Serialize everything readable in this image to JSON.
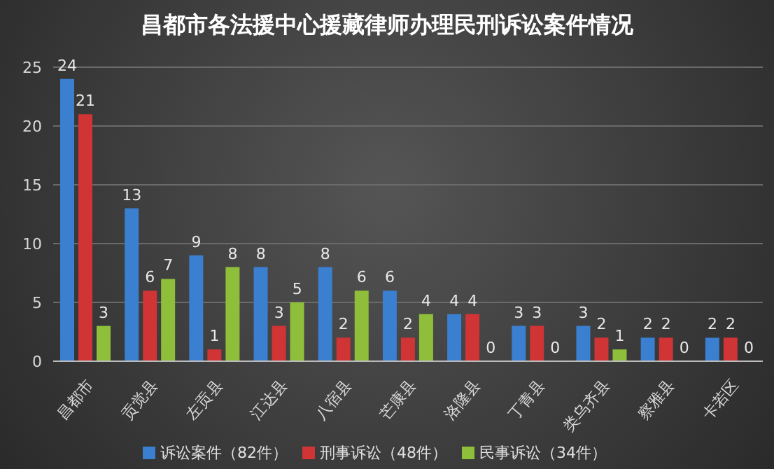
{
  "chart_data": {
    "type": "bar",
    "title": "昌都市各法援中心援藏律师办理民刑诉讼案件情况",
    "categories": [
      "昌都市",
      "贡觉县",
      "左贡县",
      "江达县",
      "八宿县",
      "芒康县",
      "洛隆县",
      "丁青县",
      "类乌齐县",
      "察雅县",
      "卡若区"
    ],
    "series": [
      {
        "name": "诉讼案件（82件）",
        "color": "#3a7fd0",
        "values": [
          24,
          13,
          9,
          8,
          8,
          6,
          4,
          3,
          3,
          2,
          2
        ]
      },
      {
        "name": "刑事诉讼（48件）",
        "color": "#d03434",
        "values": [
          21,
          6,
          1,
          3,
          2,
          2,
          4,
          3,
          2,
          2,
          2
        ]
      },
      {
        "name": "民事诉讼（34件）",
        "color": "#8fbf3a",
        "values": [
          3,
          7,
          8,
          5,
          6,
          4,
          0,
          0,
          1,
          0,
          0
        ]
      }
    ],
    "ylim": [
      0,
      25
    ],
    "yticks": [
      0,
      5,
      10,
      15,
      20,
      25
    ],
    "grid": "y",
    "legend": "bottom",
    "data_labels": true
  }
}
